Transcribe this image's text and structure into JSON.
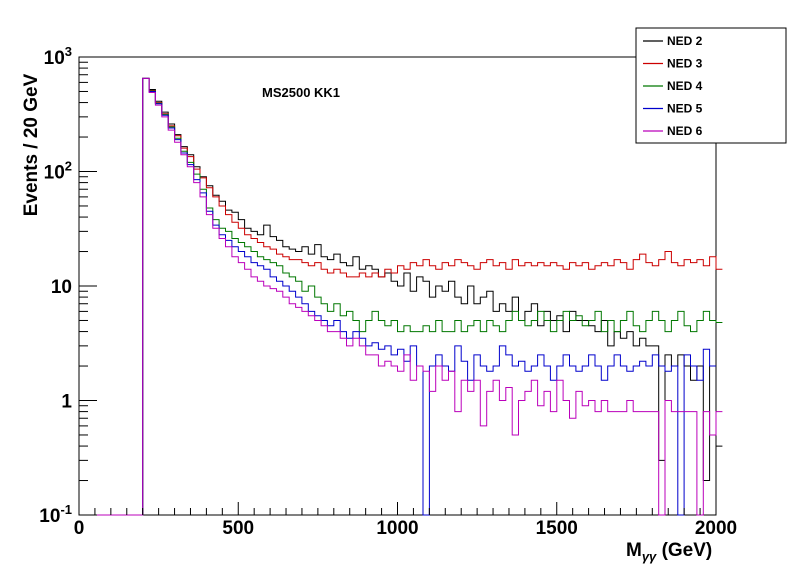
{
  "chart_data": {
    "type": "histogram-step",
    "annotation": "MS2500 KK1",
    "ylabel": "Events / 20 GeV",
    "xlabel_main": "M",
    "xlabel_sub": "γγ",
    "xlabel_unit": " (GeV)",
    "xlim": [
      0,
      2000
    ],
    "ylim": [
      0.1,
      1000
    ],
    "yscale": "log",
    "bin_width": 20,
    "grid": false,
    "legend_position": "top-right",
    "x_ticks": [
      0,
      500,
      1000,
      1500,
      2000
    ],
    "x_tick_labels": [
      "0",
      "500",
      "1000",
      "1500",
      "2000"
    ],
    "y_tick_labels": [
      {
        "value": 0.1,
        "base": "10",
        "exp": "-1"
      },
      {
        "value": 1,
        "base": "1",
        "exp": ""
      },
      {
        "value": 10,
        "base": "10",
        "exp": ""
      },
      {
        "value": 100,
        "base": "10",
        "exp": "2"
      },
      {
        "value": 1000,
        "base": "10",
        "exp": "3"
      }
    ],
    "series": [
      {
        "name": "NED 2",
        "color": "#000000",
        "values": [
          0.1,
          0.1,
          0.1,
          0.1,
          0.1,
          0.1,
          0.1,
          0.1,
          0.1,
          0.1,
          650,
          520,
          410,
          330,
          260,
          210,
          165,
          140,
          110,
          90,
          75,
          62,
          55,
          46,
          44,
          38,
          32,
          30,
          28,
          34,
          27,
          25,
          22,
          21,
          20,
          22,
          19,
          23,
          18,
          17,
          19,
          16,
          15,
          18,
          14,
          15,
          14,
          12,
          13,
          11,
          10,
          13,
          9,
          12,
          11,
          8,
          10,
          9,
          11,
          8,
          7,
          10,
          7,
          8,
          9,
          6,
          7,
          6,
          8,
          5,
          6,
          7,
          4.5,
          6,
          5,
          5.5,
          4,
          6,
          5,
          5,
          4.5,
          4,
          5,
          3,
          4,
          3.5,
          4,
          3,
          3.5,
          3,
          3,
          0.3,
          2.5,
          2,
          2.5,
          2,
          1.5,
          2,
          0.2,
          2,
          0.4
        ]
      },
      {
        "name": "NED 3",
        "color": "#cc0000",
        "values": [
          0.1,
          0.1,
          0.1,
          0.1,
          0.1,
          0.1,
          0.1,
          0.1,
          0.1,
          0.1,
          650,
          510,
          400,
          320,
          250,
          205,
          160,
          135,
          105,
          88,
          72,
          60,
          50,
          42,
          36,
          32,
          28,
          26,
          24,
          22,
          21,
          19,
          18,
          17,
          17,
          16,
          15,
          16,
          14,
          13,
          14,
          13,
          12,
          12,
          13,
          12,
          13,
          12,
          14,
          13,
          15,
          14,
          16,
          15,
          17,
          15,
          14,
          16,
          15,
          17,
          16,
          15,
          14,
          16,
          17,
          15,
          16,
          14,
          17,
          15,
          16,
          15,
          16,
          15,
          16,
          15,
          14,
          16,
          15,
          16,
          14,
          15,
          16,
          15,
          17,
          16,
          14,
          17,
          19,
          16,
          15,
          17,
          20,
          16,
          15,
          17,
          16,
          17,
          15,
          18,
          14
        ]
      },
      {
        "name": "NED 4",
        "color": "#007700",
        "values": [
          0.1,
          0.1,
          0.1,
          0.1,
          0.1,
          0.1,
          0.1,
          0.1,
          0.1,
          0.1,
          650,
          505,
          395,
          315,
          245,
          195,
          150,
          120,
          95,
          70,
          48,
          38,
          32,
          30,
          26,
          24,
          22,
          20,
          18,
          17,
          16,
          15,
          13,
          12,
          11,
          9,
          10,
          8,
          7,
          6,
          7,
          5.5,
          6,
          5,
          4,
          5,
          6,
          5,
          4.5,
          5,
          4,
          4.5,
          4,
          4,
          4.5,
          4,
          5,
          4,
          4,
          5,
          4,
          4.5,
          5,
          4,
          5,
          4.5,
          4,
          5,
          6,
          5,
          4.5,
          5,
          6,
          5,
          4,
          5,
          6,
          5,
          5.5,
          4.5,
          5,
          6,
          4,
          5,
          4,
          5,
          6,
          4.5,
          4,
          5,
          6,
          5,
          4,
          5,
          6,
          4.5,
          4,
          5,
          6,
          5,
          4.8
        ]
      },
      {
        "name": "NED 5",
        "color": "#0000cc",
        "values": [
          0.1,
          0.1,
          0.1,
          0.1,
          0.1,
          0.1,
          0.1,
          0.1,
          0.1,
          0.1,
          650,
          500,
          390,
          310,
          240,
          190,
          145,
          115,
          85,
          65,
          45,
          34,
          28,
          25,
          22,
          20,
          18,
          16,
          15,
          14,
          12,
          11,
          10,
          9,
          8,
          7,
          6,
          5.5,
          5,
          4.5,
          5,
          4,
          3.5,
          4,
          3.5,
          3,
          3.2,
          2.8,
          3,
          2.5,
          2.8,
          2.2,
          3,
          2,
          0.05,
          2,
          2.5,
          2,
          1.8,
          3,
          2.2,
          1.5,
          2.5,
          2,
          1.8,
          2,
          3,
          2.5,
          2,
          2.2,
          1.8,
          2,
          2.5,
          2,
          1.5,
          2,
          2.5,
          2,
          1.8,
          2,
          2.5,
          2,
          1.5,
          2,
          2.5,
          2,
          1.8,
          2,
          2.2,
          2,
          2.5,
          2,
          1.8,
          2,
          0.05,
          2.5,
          2,
          1.5,
          2.8,
          2
        ]
      },
      {
        "name": "NED 6",
        "color": "#bb00bb",
        "values": [
          0.1,
          0.1,
          0.1,
          0.1,
          0.1,
          0.1,
          0.1,
          0.1,
          0.1,
          0.1,
          650,
          490,
          380,
          300,
          230,
          180,
          140,
          110,
          80,
          60,
          42,
          32,
          26,
          22,
          18,
          16,
          14,
          12,
          11,
          10,
          9.5,
          9,
          8,
          7,
          6.5,
          6,
          5.5,
          5,
          4.5,
          4,
          4,
          3.5,
          3,
          3.5,
          3,
          2.5,
          2.5,
          2,
          2.2,
          2,
          1.8,
          2.5,
          1.5,
          2,
          1.8,
          1.2,
          2,
          1.5,
          1.8,
          0.8,
          1.5,
          1.2,
          1.5,
          0.6,
          1.2,
          1.5,
          1,
          1.3,
          0.5,
          1,
          1.2,
          1.5,
          0.9,
          1.2,
          0.8,
          1.5,
          1,
          0.7,
          1.2,
          0.9,
          1,
          0.8,
          1,
          0.8,
          0.8,
          0.8,
          1,
          0.8,
          0.8,
          0.8,
          0.8,
          0.05,
          1,
          0.8,
          0.8,
          0.8,
          0.8,
          0.05,
          0.8,
          0.5,
          0.8
        ]
      }
    ]
  }
}
